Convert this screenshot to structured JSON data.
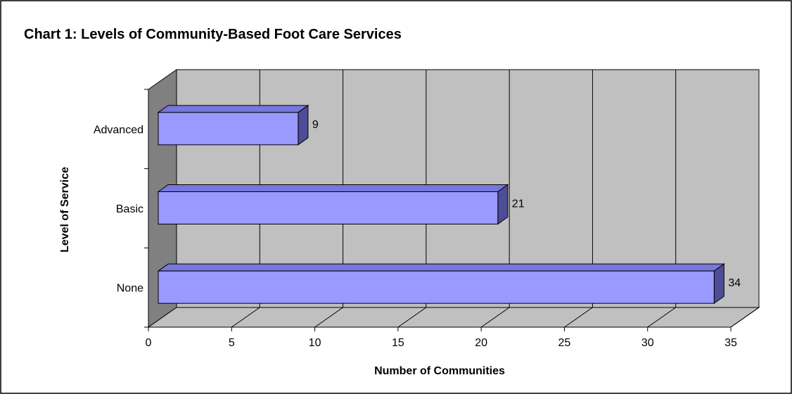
{
  "chart_data": {
    "type": "bar",
    "orientation": "horizontal",
    "style": "3d",
    "title": "Chart 1:  Levels of Community-Based Foot Care Services",
    "xlabel": "Number of Communities",
    "ylabel": "Level of Service",
    "categories": [
      "Advanced",
      "Basic",
      "None"
    ],
    "values": [
      9,
      21,
      34
    ],
    "xlim": [
      0,
      35
    ],
    "xticks": [
      0,
      5,
      10,
      15,
      20,
      25,
      30,
      35
    ],
    "grid": true,
    "legend": "none",
    "data_labels": true,
    "colors": {
      "bar_front": "#9999ff",
      "bar_top": "#7777dd",
      "bar_side": "#4d4d99",
      "plot_back": "#c0c0c0",
      "plot_floor": "#c0c0c0",
      "plot_wall": "#808080",
      "gridline": "#000000",
      "border": "#000000"
    }
  }
}
